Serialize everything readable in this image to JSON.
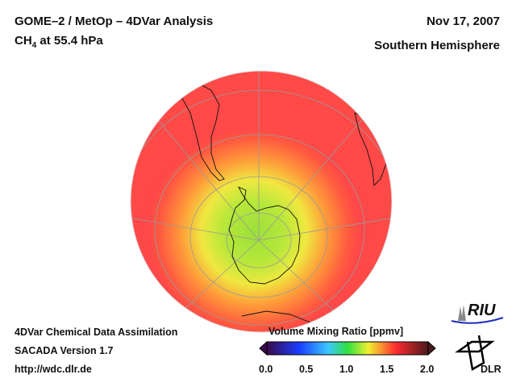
{
  "header": {
    "title": "GOME–2 / MetOp – 4DVar Analysis",
    "species_prefix": "CH",
    "species_subscript": "4",
    "species_suffix": " at 55.4 hPa",
    "date": "Nov 17, 2007",
    "region": "Southern Hemisphere"
  },
  "footer": {
    "line1": "4DVar Chemical Data Assimilation",
    "line2": "SACADA Version 1.7",
    "line3": "http://wdc.dlr.de"
  },
  "colorbar": {
    "title": "Volume Mixing Ratio [ppmv]",
    "ticks": [
      "0.0",
      "0.5",
      "1.0",
      "1.5",
      "2.0"
    ],
    "range": [
      0.0,
      2.0
    ],
    "colors": [
      "#3a0a4a",
      "#1a3cff",
      "#3cc8ff",
      "#30e040",
      "#f0f030",
      "#ff3030",
      "#4a1a1a"
    ]
  },
  "logos": {
    "riu": "RIU",
    "dlr": "DLR"
  }
}
